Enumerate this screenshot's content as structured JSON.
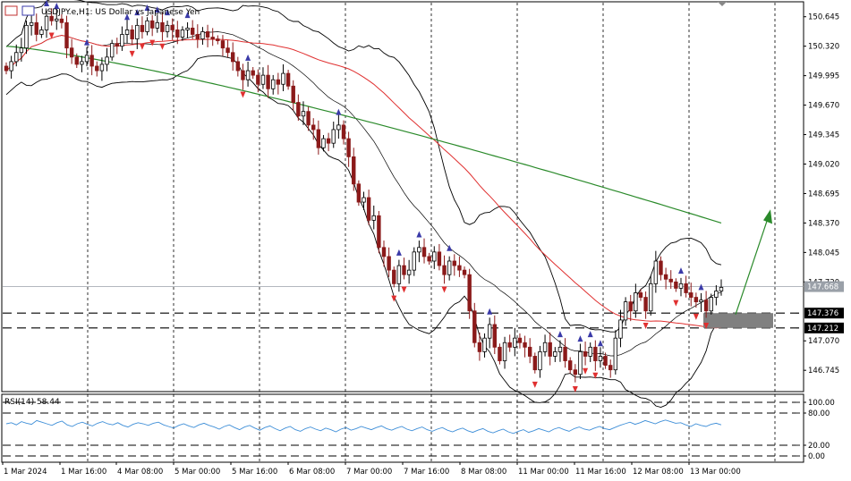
{
  "chart_data": {
    "type": "candlestick",
    "title": "USDJPY.e,H1:  US Dollar vs Japanese Yen",
    "price_axis": {
      "ticks": [
        "150.645",
        "150.320",
        "149.995",
        "149.670",
        "149.345",
        "149.020",
        "148.695",
        "148.370",
        "148.045",
        "147.720",
        "147.070",
        "146.745"
      ],
      "ylim": [
        146.52,
        150.8
      ]
    },
    "price_tags": [
      {
        "label": "147.668",
        "value": 147.668,
        "color": "#9aa0a8"
      },
      {
        "label": "147.376",
        "value": 147.376,
        "color": "#000000"
      },
      {
        "label": "147.212",
        "value": 147.212,
        "color": "#000000"
      }
    ],
    "time_axis": {
      "labels": [
        "1 Mar 2024",
        "1 Mar 16:00",
        "4 Mar 08:00",
        "5 Mar 00:00",
        "5 Mar 16:00",
        "6 Mar 08:00",
        "7 Mar 00:00",
        "7 Mar 16:00",
        "8 Mar 08:00",
        "11 Mar 00:00",
        "11 Mar 16:00",
        "12 Mar 08:00",
        "13 Mar 00:00"
      ]
    },
    "close_series": [
      150.05,
      150.15,
      150.25,
      150.3,
      150.55,
      150.58,
      150.45,
      150.5,
      150.65,
      150.6,
      150.62,
      150.58,
      150.3,
      150.2,
      150.12,
      150.15,
      150.22,
      150.1,
      150.05,
      150.12,
      150.2,
      150.35,
      150.32,
      150.45,
      150.5,
      150.4,
      150.55,
      150.48,
      150.6,
      150.52,
      150.58,
      150.48,
      150.55,
      150.5,
      150.42,
      150.5,
      150.52,
      150.45,
      150.4,
      150.48,
      150.42,
      150.4,
      150.38,
      150.3,
      150.25,
      150.15,
      150.05,
      149.95,
      150.05,
      150.0,
      149.9,
      150.0,
      149.85,
      149.95,
      149.9,
      150.02,
      149.88,
      149.7,
      149.55,
      149.6,
      149.45,
      149.4,
      149.2,
      149.3,
      149.25,
      149.4,
      149.45,
      149.3,
      149.1,
      148.8,
      148.6,
      148.65,
      148.4,
      148.45,
      148.1,
      148.0,
      147.85,
      147.7,
      147.9,
      147.8,
      147.85,
      148.05,
      148.1,
      148.0,
      147.95,
      148.05,
      147.9,
      147.8,
      147.95,
      147.9,
      147.85,
      147.8,
      147.4,
      147.05,
      146.95,
      147.1,
      147.25,
      147.0,
      146.85,
      147.05,
      147.0,
      147.1,
      147.05,
      147.0,
      146.9,
      146.75,
      146.95,
      147.05,
      146.9,
      146.95,
      147.0,
      146.85,
      146.75,
      146.7,
      146.95,
      146.9,
      147.0,
      146.85,
      146.9,
      146.8,
      146.75,
      147.1,
      147.3,
      147.5,
      147.4,
      147.6,
      147.55,
      147.4,
      147.7,
      147.95,
      147.8,
      147.75,
      147.72,
      147.65,
      147.7,
      147.6,
      147.55,
      147.5,
      147.52,
      147.4,
      147.55,
      147.62,
      147.66
    ],
    "indicators": {
      "bollinger_bands": true,
      "moving_averages": [
        "red",
        "green"
      ],
      "fractal_arrows": true
    },
    "rsi": {
      "label": "RSI(14) 58.44",
      "ticks": [
        "100.00",
        "80.00",
        "20.00",
        "0.00"
      ],
      "levels": [
        100,
        80,
        20,
        0
      ],
      "values": [
        60,
        62,
        58,
        64,
        61,
        59,
        66,
        63,
        60,
        57,
        62,
        65,
        58,
        55,
        60,
        63,
        59,
        56,
        61,
        64,
        60,
        58,
        62,
        57,
        54,
        59,
        62,
        60,
        57,
        61,
        63,
        58,
        55,
        52,
        57,
        60,
        56,
        53,
        58,
        61,
        57,
        54,
        50,
        55,
        58,
        53,
        49,
        54,
        57,
        52,
        48,
        53,
        56,
        51,
        47,
        52,
        55,
        49,
        46,
        51,
        54,
        50,
        47,
        52,
        49,
        45,
        50,
        53,
        48,
        51,
        55,
        52,
        49,
        53,
        56,
        51,
        48,
        52,
        55,
        50,
        47,
        51,
        54,
        49,
        46,
        50,
        53,
        48,
        45,
        49,
        52,
        47,
        44,
        48,
        51,
        46,
        43,
        47,
        50,
        45,
        42,
        46,
        49,
        44,
        47,
        51,
        48,
        45,
        50,
        53,
        49,
        46,
        51,
        54,
        50,
        48,
        52,
        55,
        51,
        49,
        53,
        57,
        60,
        63,
        59,
        62,
        66,
        63,
        60,
        64,
        67,
        64,
        61,
        62,
        58,
        55,
        60,
        57,
        55,
        59,
        61,
        58
      ]
    },
    "colors": {
      "up": "#000000",
      "down": "#8b1a1a",
      "ma_fast": "#e03030",
      "ma_slow": "#2a8a2a",
      "rsi_line": "#3f8fd8",
      "arrow_up": "#3a3aa8",
      "arrow_down": "#e03030",
      "zone": "#808080"
    }
  }
}
